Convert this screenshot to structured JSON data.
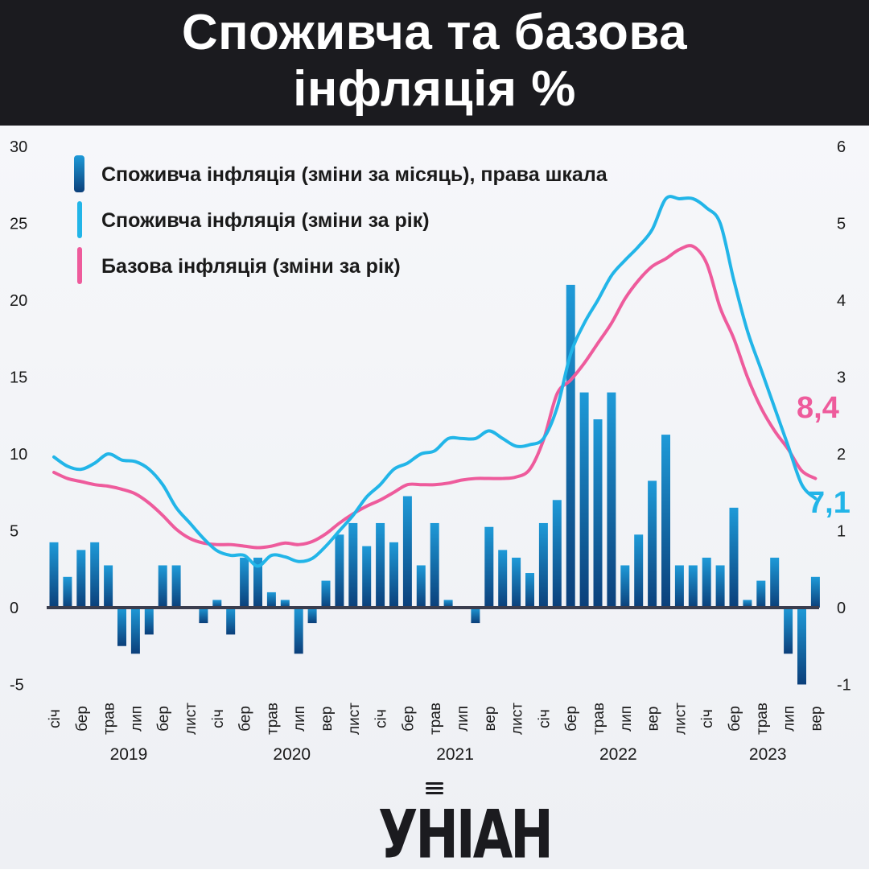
{
  "header": {
    "title_line1": "Споживча та базова",
    "title_line2": "інфляція %"
  },
  "legend": [
    {
      "label": "Споживча інфляція (зміни за місяць), права шкала",
      "color": "#1e78c8"
    },
    {
      "label": "Споживча інфляція (зміни за рік)",
      "color": "#22b5e8"
    },
    {
      "label": "Базова інфляція (зміни за рік)",
      "color": "#ee5b9c"
    }
  ],
  "end_labels": {
    "core": "8,4",
    "cpi": "7,1"
  },
  "logo": {
    "text": "УНІАН"
  },
  "colors": {
    "bar_top": "#1e9ad8",
    "bar_bottom": "#0b3f7a",
    "cpi": "#22b5e8",
    "core": "#ee5b9c",
    "axis": "#3a3d4e",
    "header": "#1b1b1f"
  },
  "chart_data": {
    "type": "bar+line",
    "title": "Споживча та базова інфляція %",
    "left_axis": {
      "ylim": [
        -5,
        30
      ],
      "ticks": [
        "30",
        "25",
        "20",
        "15",
        "10",
        "5",
        "0",
        "-5"
      ]
    },
    "right_axis": {
      "ylim": [
        -1,
        6
      ],
      "ticks": [
        "6",
        "5",
        "4",
        "3",
        "2",
        "1",
        "0",
        "-1"
      ]
    },
    "x_ticks": [
      "січ",
      "бер",
      "трав",
      "лип",
      "бер",
      "лист",
      "січ",
      "бер",
      "трав",
      "лип",
      "вер",
      "лист",
      "січ",
      "бер",
      "трав",
      "лип",
      "вер",
      "лист",
      "січ",
      "бер",
      "трав",
      "лип",
      "вер",
      "лист",
      "січ",
      "бер",
      "трав",
      "лип",
      "вер"
    ],
    "x_tick_months": [
      0,
      2,
      4,
      6,
      8,
      10,
      12,
      14,
      16,
      18,
      20,
      22,
      24,
      26,
      28,
      30,
      32,
      34,
      36,
      38,
      40,
      42,
      44,
      46,
      48,
      50,
      52,
      54,
      56
    ],
    "years": [
      {
        "label": "2019",
        "center_month": 5.5
      },
      {
        "label": "2020",
        "center_month": 17.5
      },
      {
        "label": "2021",
        "center_month": 29.5
      },
      {
        "label": "2022",
        "center_month": 41.5
      },
      {
        "label": "2023",
        "center_month": 52.5
      }
    ],
    "series": [
      {
        "name": "Споживча інфляція (зміни за місяць), права шкала",
        "kind": "bar",
        "axis": "right",
        "values": [
          0.85,
          0.4,
          0.75,
          0.85,
          0.55,
          -0.5,
          -0.6,
          -0.35,
          0.55,
          0.55,
          0.0,
          -0.2,
          0.1,
          -0.35,
          0.65,
          0.65,
          0.2,
          0.1,
          -0.6,
          -0.2,
          0.35,
          0.95,
          1.1,
          0.8,
          1.1,
          0.85,
          1.45,
          0.55,
          1.1,
          0.1,
          0.0,
          -0.2,
          1.05,
          0.75,
          0.65,
          0.45,
          1.1,
          1.4,
          4.2,
          2.8,
          2.45,
          2.8,
          0.55,
          0.95,
          1.65,
          2.25,
          0.55,
          0.55,
          0.65,
          0.55,
          1.3,
          0.1,
          0.35,
          0.65,
          -0.6,
          -1.0,
          0.4
        ]
      },
      {
        "name": "Споживча інфляція (зміни за рік)",
        "kind": "line",
        "axis": "left",
        "values": [
          9.8,
          9.2,
          9.0,
          9.4,
          10.0,
          9.6,
          9.5,
          9.0,
          8.0,
          6.5,
          5.5,
          4.5,
          3.7,
          3.4,
          3.4,
          2.7,
          3.4,
          3.3,
          3.0,
          3.2,
          4.0,
          5.0,
          6.0,
          7.2,
          8.0,
          9.0,
          9.4,
          10.0,
          10.2,
          11.0,
          11.0,
          11.0,
          11.5,
          11.0,
          10.5,
          10.6,
          11.0,
          13.0,
          16.5,
          18.5,
          20.0,
          21.6,
          22.6,
          23.5,
          24.6,
          26.6,
          26.6,
          26.6,
          26.0,
          25.0,
          21.3,
          18.0,
          15.5,
          13.0,
          10.5,
          8.0,
          7.1
        ]
      },
      {
        "name": "Базова інфляція (зміни за рік)",
        "kind": "line",
        "axis": "left",
        "values": [
          8.8,
          8.4,
          8.2,
          8.0,
          7.9,
          7.7,
          7.4,
          6.8,
          6.0,
          5.1,
          4.5,
          4.2,
          4.1,
          4.1,
          4.0,
          3.9,
          4.0,
          4.2,
          4.1,
          4.3,
          4.8,
          5.5,
          6.1,
          6.6,
          7.0,
          7.5,
          8.0,
          8.0,
          8.0,
          8.1,
          8.3,
          8.4,
          8.4,
          8.4,
          8.5,
          9.0,
          10.9,
          13.9,
          14.8,
          15.9,
          17.2,
          18.5,
          20.1,
          21.3,
          22.2,
          22.7,
          23.3,
          23.5,
          22.4,
          19.5,
          17.5,
          15.0,
          13.0,
          11.5,
          10.3,
          8.9,
          8.4
        ]
      }
    ]
  }
}
